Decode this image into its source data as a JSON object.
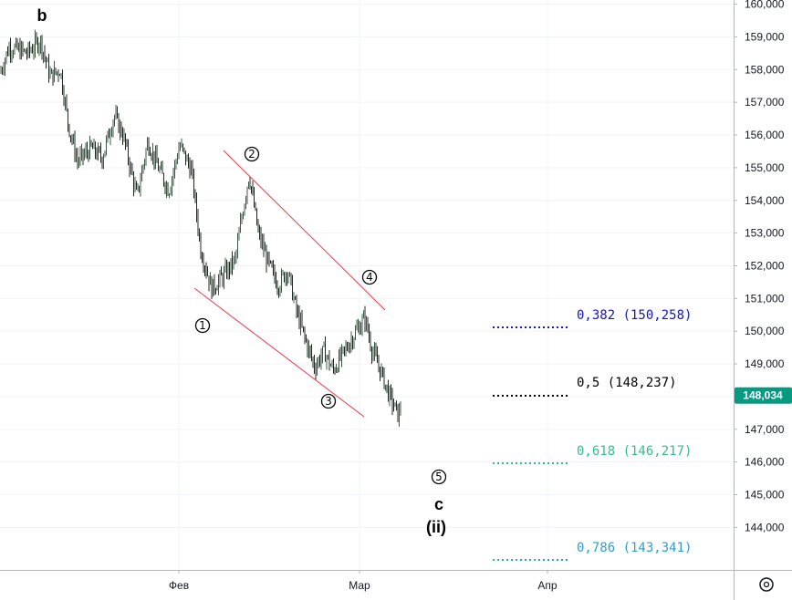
{
  "chart_data": {
    "type": "candlestick",
    "y_axis": {
      "position": "right",
      "ylim": [
        142700,
        160100
      ],
      "ticks": [
        "160,000",
        "159,000",
        "158,000",
        "157,000",
        "156,000",
        "155,000",
        "154,000",
        "153,000",
        "152,000",
        "151,000",
        "150,000",
        "149,000",
        "148,000",
        "147,000",
        "146,000",
        "145,000",
        "144,000"
      ]
    },
    "x_axis": {
      "ticks": [
        "Фев",
        "Мар",
        "Апр"
      ]
    },
    "grid": true,
    "last_price": {
      "value": 148034,
      "label": "148,034",
      "color": "#089981"
    },
    "price_path": [
      [
        0,
        157900
      ],
      [
        10,
        158700
      ],
      [
        20,
        158600
      ],
      [
        30,
        158500
      ],
      [
        44,
        158900
      ],
      [
        55,
        157800
      ],
      [
        66,
        158000
      ],
      [
        75,
        156300
      ],
      [
        85,
        155200
      ],
      [
        100,
        155600
      ],
      [
        112,
        155300
      ],
      [
        125,
        156600
      ],
      [
        135,
        156000
      ],
      [
        150,
        154100
      ],
      [
        162,
        155800
      ],
      [
        175,
        154900
      ],
      [
        185,
        154300
      ],
      [
        197,
        155700
      ],
      [
        210,
        154900
      ],
      [
        220,
        152500
      ],
      [
        232,
        151300
      ],
      [
        245,
        151700
      ],
      [
        258,
        152200
      ],
      [
        265,
        153500
      ],
      [
        273,
        154800
      ],
      [
        283,
        153000
      ],
      [
        295,
        152000
      ],
      [
        305,
        151400
      ],
      [
        315,
        151900
      ],
      [
        325,
        150600
      ],
      [
        335,
        149700
      ],
      [
        345,
        148900
      ],
      [
        355,
        149400
      ],
      [
        365,
        148800
      ],
      [
        378,
        149400
      ],
      [
        390,
        150000
      ],
      [
        400,
        150400
      ],
      [
        408,
        149400
      ],
      [
        417,
        148800
      ],
      [
        427,
        148000
      ],
      [
        437,
        147400
      ],
      [
        441,
        148000
      ]
    ],
    "waves": [
      {
        "label": "b",
        "style": "letter"
      },
      {
        "label": "①",
        "style": "circled"
      },
      {
        "label": "②",
        "style": "circled"
      },
      {
        "label": "③",
        "style": "circled"
      },
      {
        "label": "④",
        "style": "circled"
      },
      {
        "label": "⑤",
        "style": "circled"
      },
      {
        "label": "c",
        "style": "letter"
      },
      {
        "label": "(ii)",
        "style": "letter"
      }
    ],
    "channel_color": "#f23645",
    "fib_levels": [
      {
        "ratio": "0,382",
        "price": 150258,
        "label": "0,382 (150,258)",
        "color": "#1212d6"
      },
      {
        "ratio": "0,5",
        "price": 148237,
        "label": "0,5 (148,237)",
        "color": "#000000"
      },
      {
        "ratio": "0,618",
        "price": 146217,
        "label": "0,618 (146,217)",
        "color": "#2fbf90"
      },
      {
        "ratio": "0,786",
        "price": 143341,
        "label": "0,786 (143,341)",
        "color": "#2a9fd6"
      }
    ]
  },
  "settings_icon": "gear-icon"
}
